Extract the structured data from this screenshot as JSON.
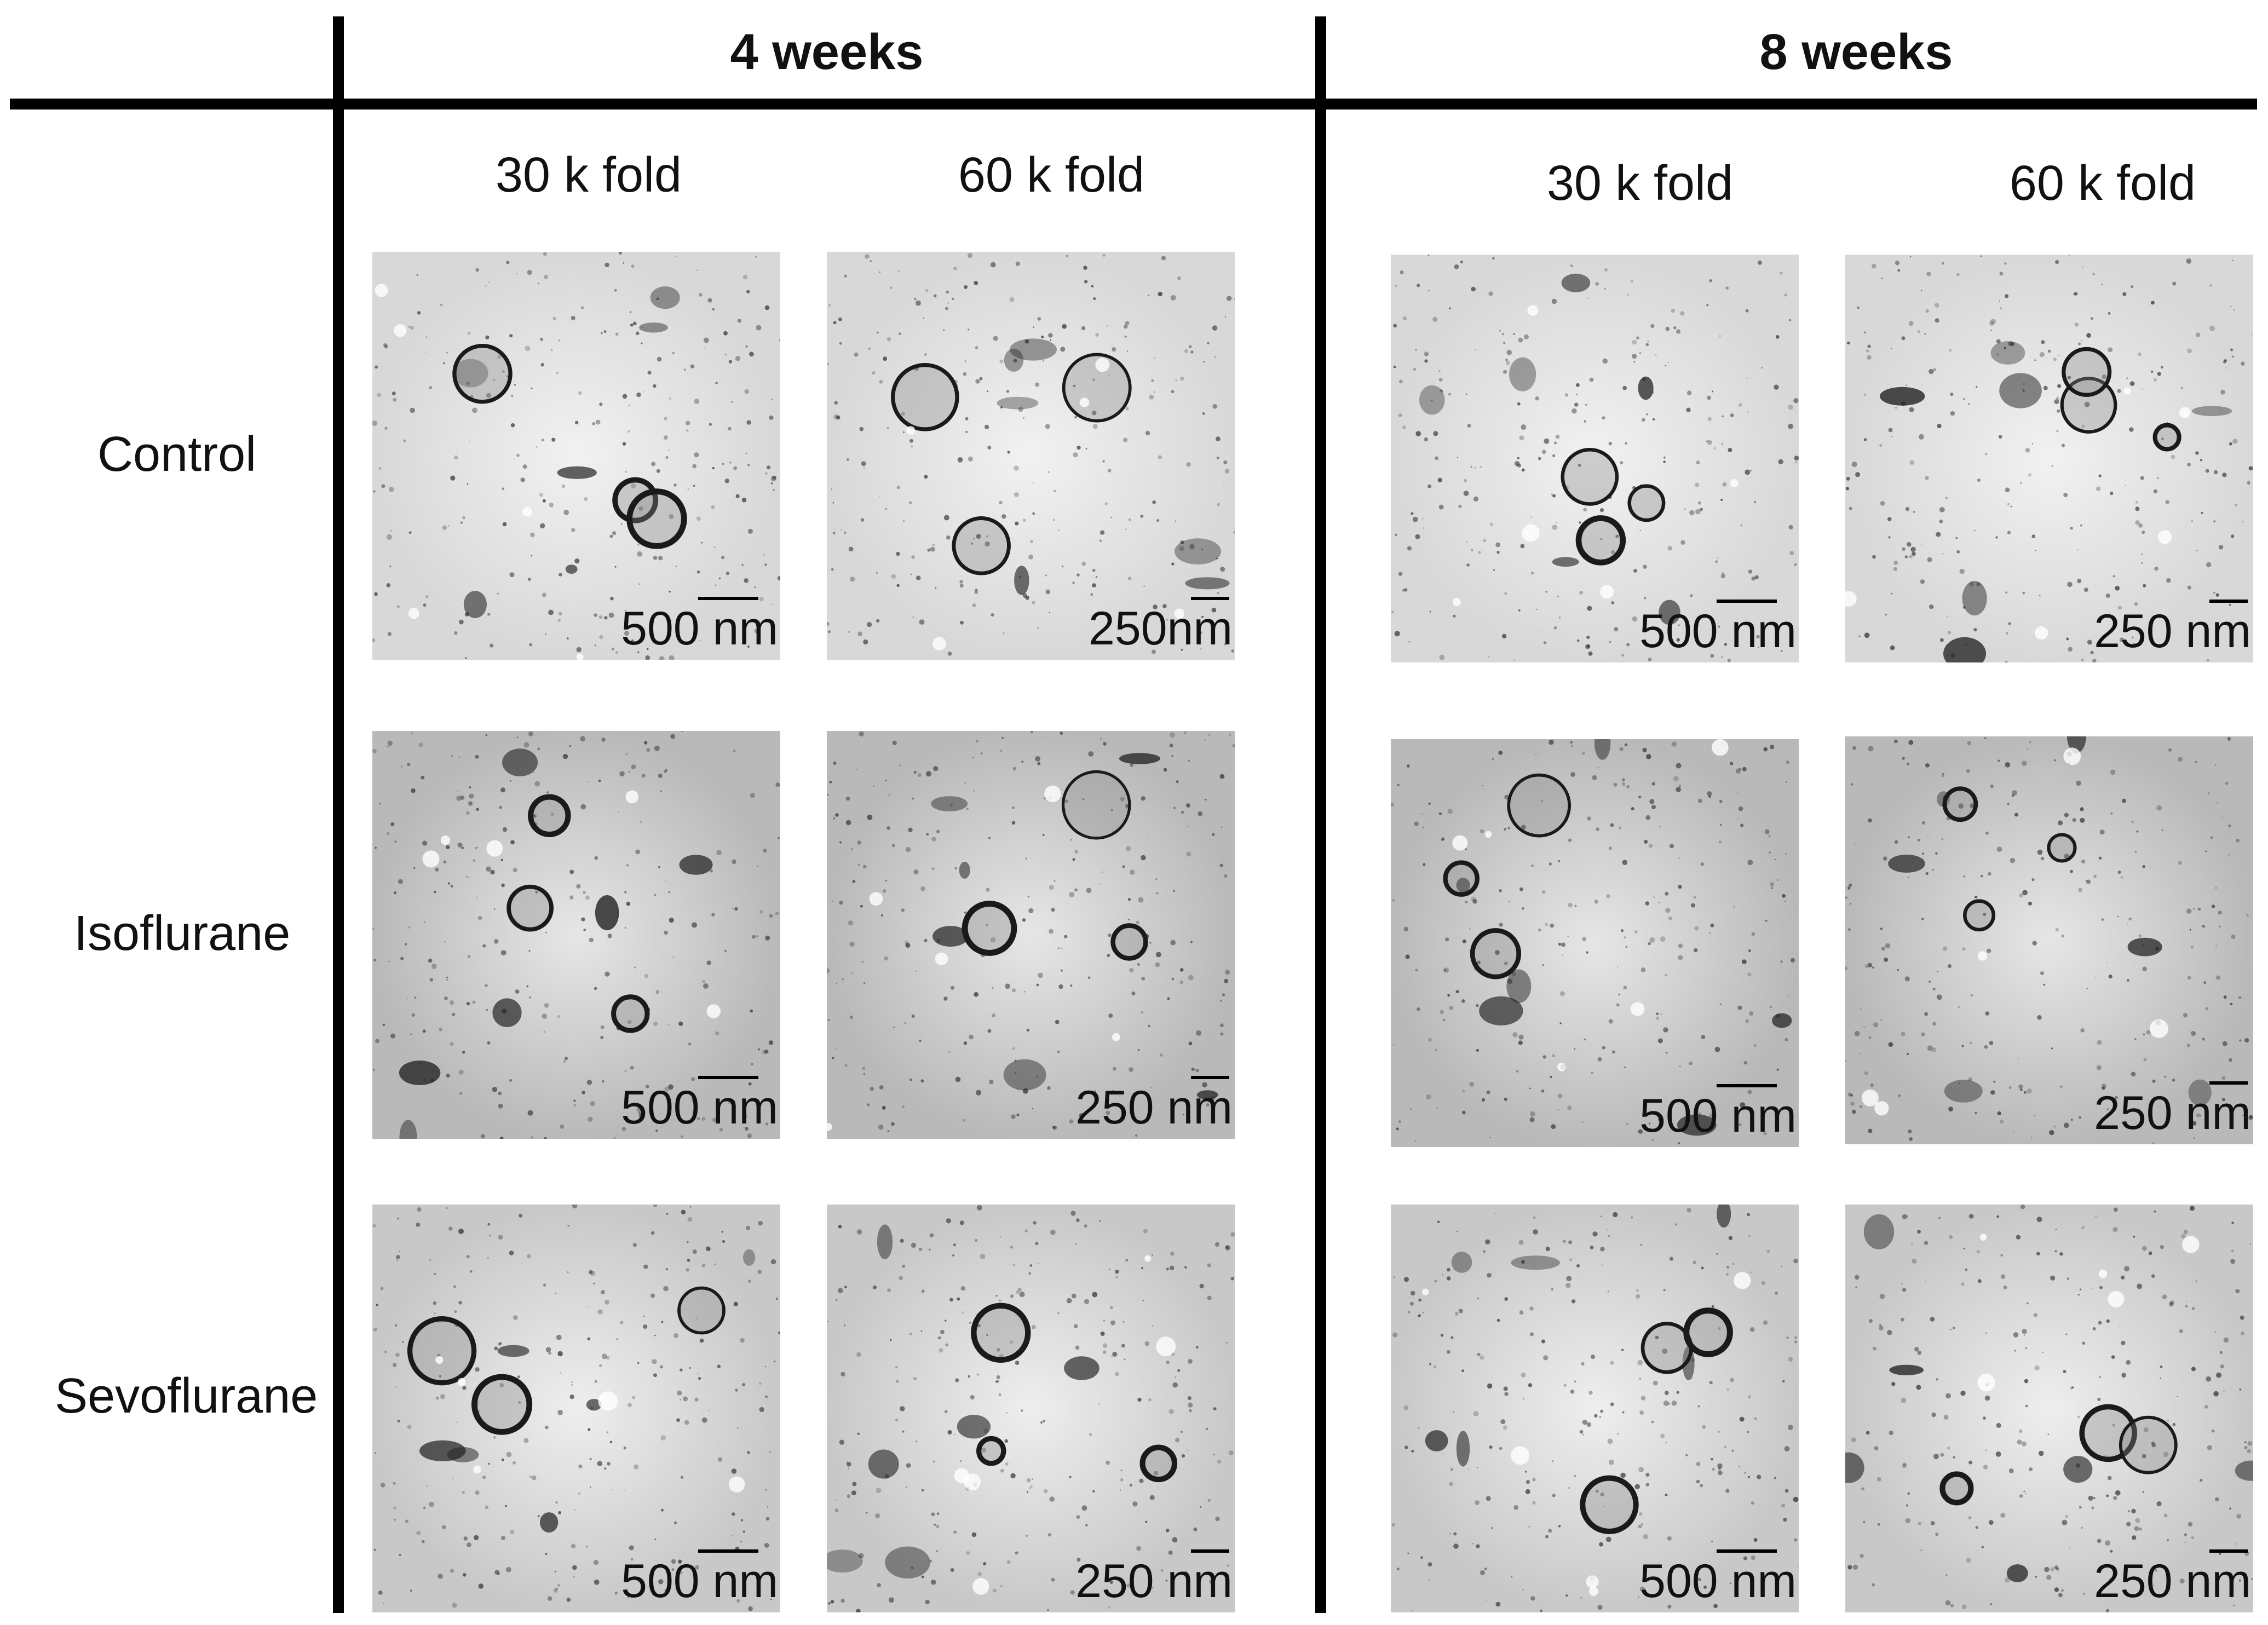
{
  "headers": {
    "left": "4 weeks",
    "right": "8 weeks"
  },
  "columns": [
    "30 k fold",
    "60 k fold",
    "30 k fold",
    "60 k fold"
  ],
  "rows": [
    "Control",
    "Isoflurane",
    "Sevoflurane"
  ],
  "scale_labels": {
    "control": [
      "500 nm",
      "250nm",
      "500 nm",
      "250 nm"
    ],
    "isoflurane": [
      "500 nm",
      "250 nm",
      "500 nm",
      "250 nm"
    ],
    "sevoflurane": [
      "500 nm",
      "250 nm",
      "500 nm",
      "250 nm"
    ]
  },
  "colors": {
    "line": "#000000",
    "background": "#ffffff",
    "micrograph": "#e9e9e9"
  }
}
